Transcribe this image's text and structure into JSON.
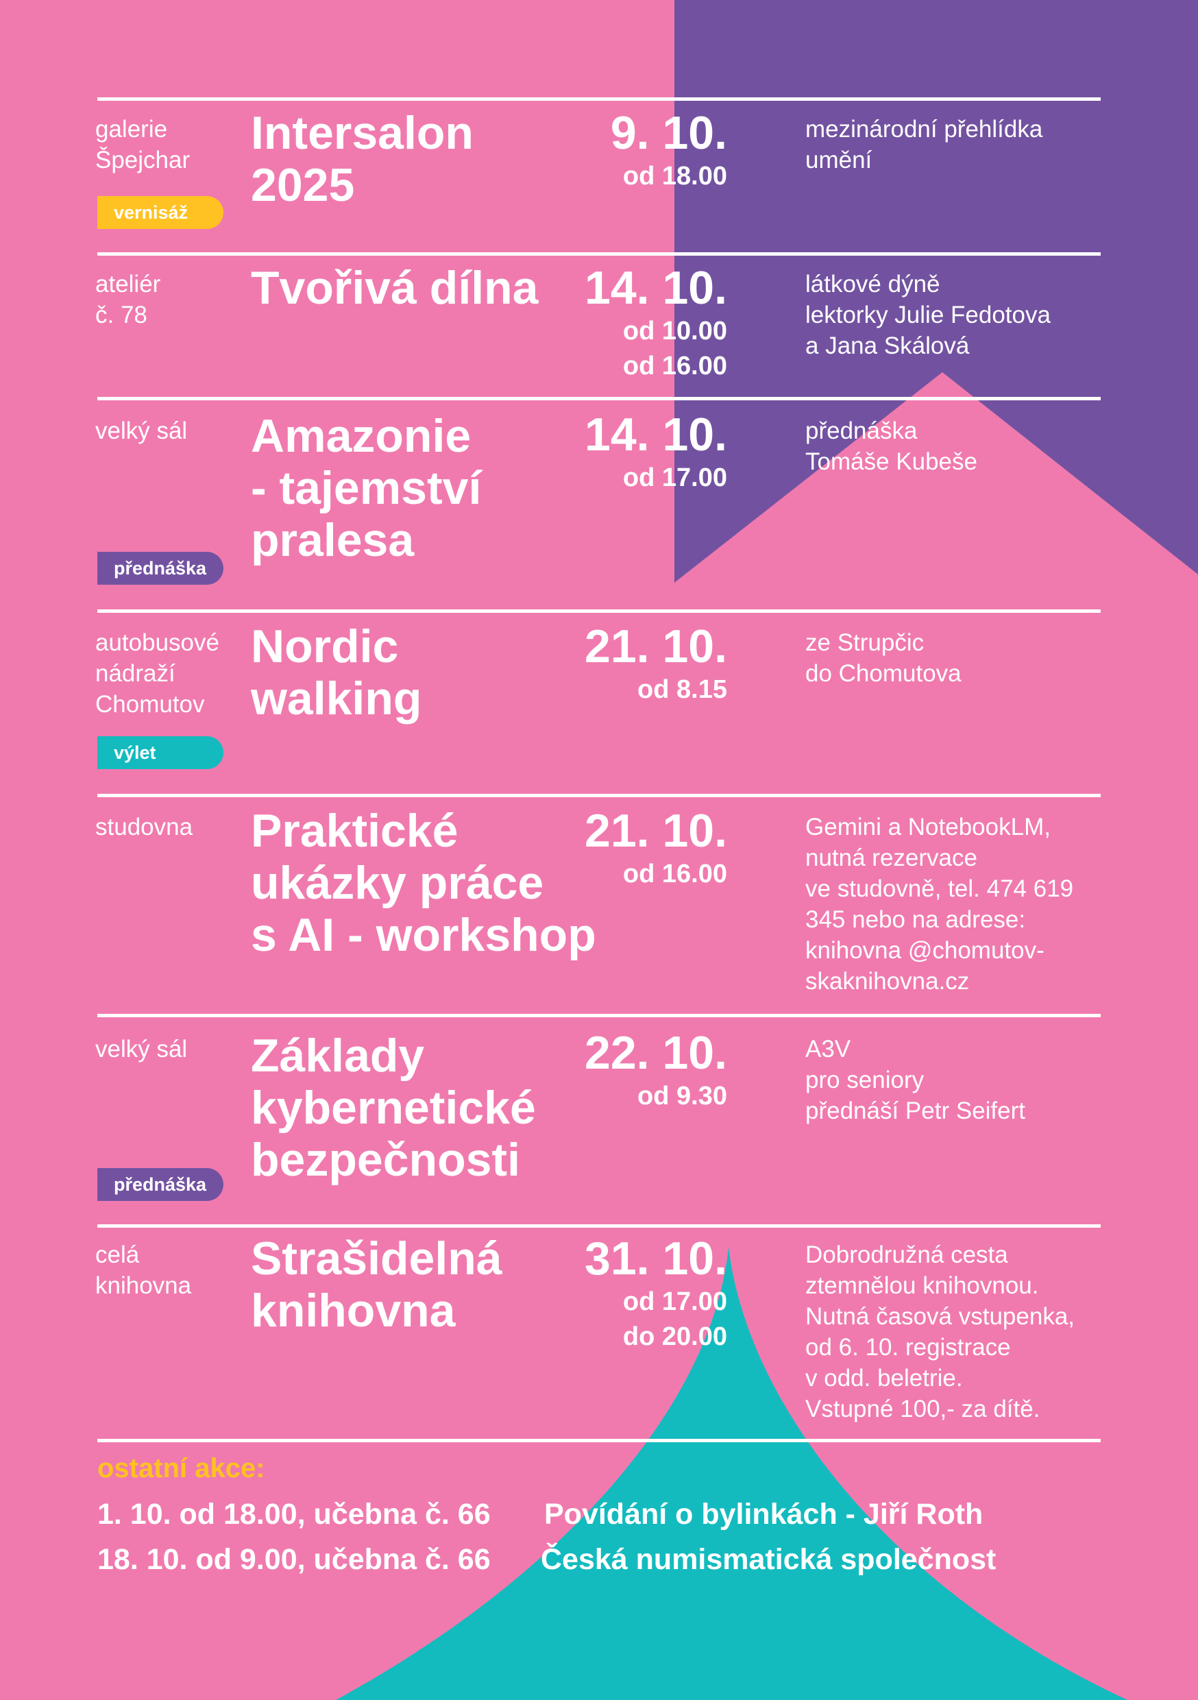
{
  "colors": {
    "pink": "#f07aae",
    "purple": "#7252a0",
    "teal": "#13bbbf",
    "yellow": "#ffc222"
  },
  "events": [
    {
      "location": [
        "galerie",
        "Špejchar"
      ],
      "title": [
        "Intersalon",
        "2025"
      ],
      "date": "9. 10.",
      "times": [
        "od 18.00"
      ],
      "description": [
        "mezinárodní přehlídka",
        "umění"
      ],
      "badge": "vernisáž",
      "badge_color": "#ffc222"
    },
    {
      "location": [
        "ateliér",
        "č. 78"
      ],
      "title": [
        "Tvořivá dílna"
      ],
      "date": "14. 10.",
      "times": [
        "od 10.00",
        "od 16.00"
      ],
      "description": [
        "látkové dýně",
        "lektorky Julie Fedotova",
        "a Jana Skálová"
      ]
    },
    {
      "location": [
        "velký sál"
      ],
      "title": [
        "Amazonie",
        "- tajemství",
        "pralesa"
      ],
      "date": "14. 10.",
      "times": [
        "od 17.00"
      ],
      "description": [
        "přednáška",
        "Tomáše Kubeše"
      ],
      "badge": "přednáška",
      "badge_color": "#7252a0"
    },
    {
      "location": [
        "autobusové",
        "nádraží",
        "Chomutov"
      ],
      "title": [
        "Nordic",
        "walking"
      ],
      "date": "21. 10.",
      "times": [
        "od 8.15"
      ],
      "description": [
        "ze Strupčic",
        "do Chomutova"
      ],
      "badge": "výlet",
      "badge_color": "#13bbbf"
    },
    {
      "location": [
        "studovna"
      ],
      "title": [
        "Praktické",
        "ukázky práce",
        "s AI - workshop"
      ],
      "date": "21. 10.",
      "times": [
        "od 16.00"
      ],
      "description": [
        "Gemini a NotebookLM,",
        "nutná rezervace",
        "ve studovně, tel. 474 619",
        "345 nebo na adrese:",
        "knihovna @chomutov-",
        "skaknihovna.cz"
      ]
    },
    {
      "location": [
        "velký sál"
      ],
      "title": [
        "Základy",
        "kybernetické",
        "bezpečnosti"
      ],
      "date": "22. 10.",
      "times": [
        "od 9.30"
      ],
      "description": [
        "A3V",
        "pro seniory",
        "přednáší Petr Seifert"
      ],
      "badge": "přednáška",
      "badge_color": "#7252a0"
    },
    {
      "location": [
        "celá",
        "knihovna"
      ],
      "title": [
        "Strašidelná",
        "knihovna"
      ],
      "date": "31. 10.",
      "times": [
        "od 17.00",
        "do 20.00"
      ],
      "description": [
        "Dobrodružná cesta",
        "ztemnělou knihovnou.",
        "Nutná časová vstupenka,",
        "od 6. 10. registrace",
        "v odd. beletrie.",
        "Vstupné 100,- za dítě."
      ]
    }
  ],
  "other": {
    "heading": "ostatní akce:",
    "items": [
      {
        "when": "1. 10. od 18.00, učebna č. 66",
        "what": "Povídání o bylinkách - Jiří Roth"
      },
      {
        "when": "18. 10. od 9.00, učebna č. 66",
        "what": "Česká numismatická společnost"
      }
    ]
  }
}
